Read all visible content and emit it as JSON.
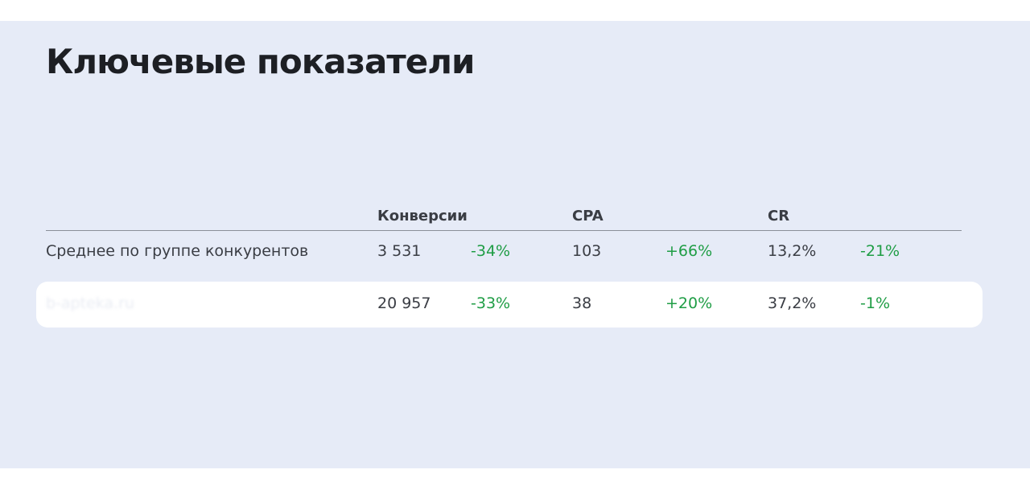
{
  "title": "Ключевые показатели",
  "table": {
    "headers": [
      "Конверсии",
      "CPA",
      "CR"
    ],
    "rows": [
      [
        "Среднее по группе конкурентов",
        "3 531",
        "-34%",
        "103",
        "+66%",
        "13,2%",
        "-21%"
      ],
      [
        "b-apteka.ru",
        "20 957",
        "-33%",
        "38",
        "+20%",
        "37,2%",
        "-1%"
      ]
    ]
  }
}
